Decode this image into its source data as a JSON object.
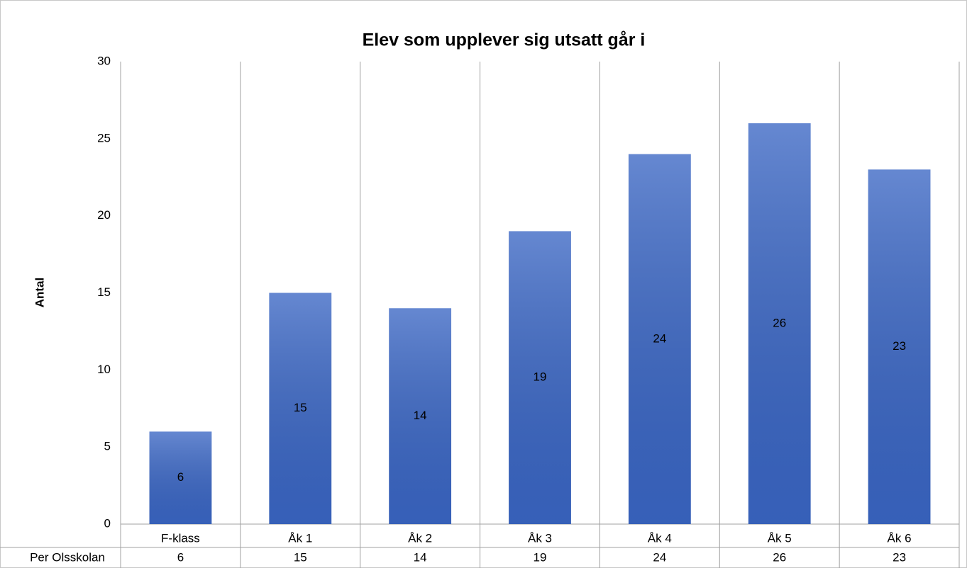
{
  "chart_data": {
    "type": "bar",
    "title": "Elev som upplever sig utsatt går i",
    "y_label": "Antal",
    "categories": [
      "F-klass",
      "Åk 1",
      "Åk 2",
      "Åk 3",
      "Åk 4",
      "Åk 5",
      "Åk 6"
    ],
    "series": [
      {
        "name": "Per Olsskolan",
        "color": "#3a66c4",
        "values": [
          6,
          15,
          14,
          19,
          24,
          26,
          23
        ]
      }
    ],
    "ylim": [
      0,
      30
    ],
    "yticks": [
      0,
      5,
      10,
      15,
      20,
      25,
      30
    ],
    "data_labels": true,
    "data_table": true
  }
}
